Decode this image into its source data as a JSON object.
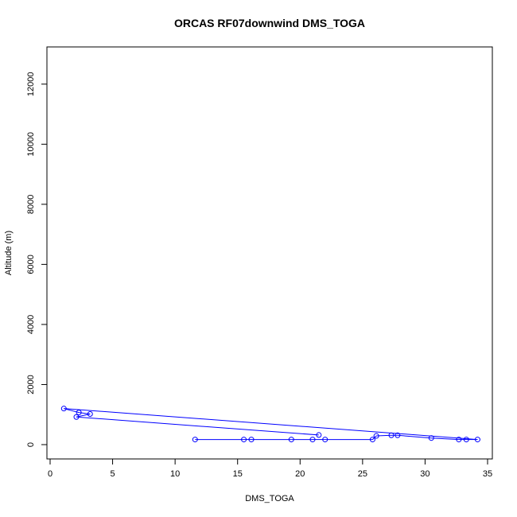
{
  "chart_data": {
    "type": "scatter",
    "title": "ORCAS RF07downwind DMS_TOGA",
    "xlabel": "DMS_TOGA",
    "ylabel": "Altitude (m)",
    "xlim": [
      0,
      35
    ],
    "ylim": [
      0,
      13000
    ],
    "x_ticks": [
      0,
      5,
      10,
      15,
      20,
      25,
      30,
      35
    ],
    "y_ticks": [
      0,
      2000,
      4000,
      6000,
      8000,
      10000,
      12000
    ],
    "y_tick_labels_rotated": true,
    "grid": false,
    "line_color": "#0000ff",
    "marker": "open-circle",
    "series": [
      {
        "x": [
          11.6,
          15.5,
          16.1,
          19.3,
          21.0,
          22.0,
          25.8,
          26.1,
          27.3,
          27.8,
          30.5,
          32.7,
          33.3,
          34.2,
          1.1,
          2.3,
          3.2,
          2.1,
          21.5
        ],
        "y": [
          170,
          170,
          170,
          170,
          170,
          170,
          170,
          290,
          310,
          310,
          220,
          170,
          170,
          170,
          1200,
          1070,
          1020,
          920,
          320
        ]
      }
    ]
  }
}
